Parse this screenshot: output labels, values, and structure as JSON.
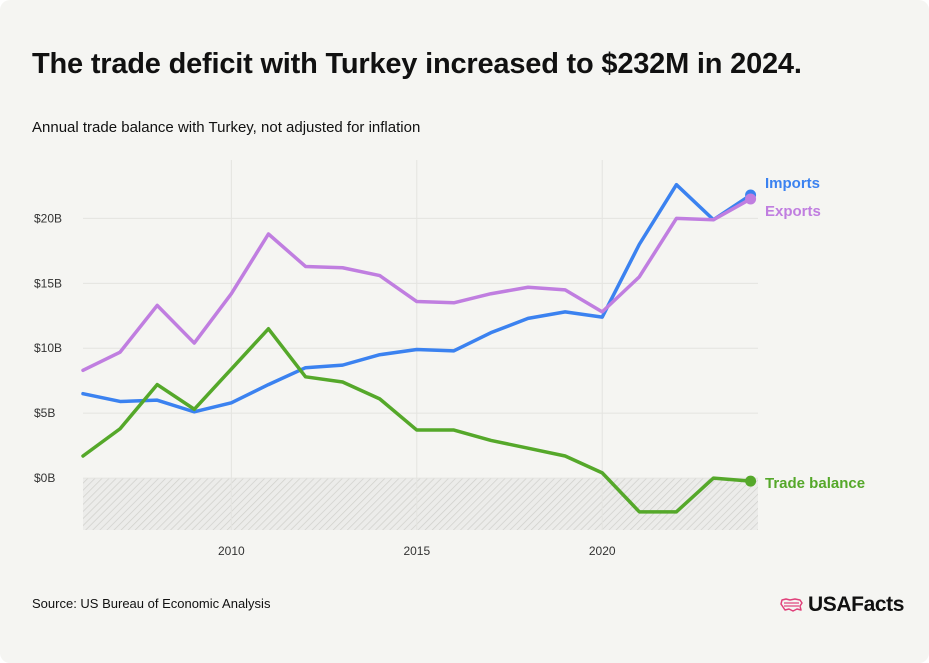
{
  "title": "The trade deficit with Turkey increased to $232M in 2024.",
  "subtitle": "Annual trade balance with Turkey, not adjusted for inflation",
  "source": "Source: US Bureau of Economic Analysis",
  "logo_text": "USAFacts",
  "colors": {
    "imports": "#3b82f0",
    "exports": "#c07ee0",
    "trade_balance": "#55a82a",
    "background": "#f5f5f2",
    "grid": "#e4e4e0"
  },
  "chart_data": {
    "type": "line",
    "x": [
      2006,
      2007,
      2008,
      2009,
      2010,
      2011,
      2012,
      2013,
      2014,
      2015,
      2016,
      2017,
      2018,
      2019,
      2020,
      2021,
      2022,
      2023,
      2024
    ],
    "series": [
      {
        "name": "Imports",
        "key": "imports",
        "values": [
          6.5,
          5.9,
          6.0,
          5.1,
          5.8,
          7.2,
          8.5,
          8.7,
          9.5,
          9.9,
          9.8,
          11.2,
          12.3,
          12.8,
          12.4,
          18.0,
          22.6,
          19.9,
          21.8
        ]
      },
      {
        "name": "Exports",
        "key": "exports",
        "values": [
          8.3,
          9.7,
          13.3,
          10.4,
          14.2,
          18.8,
          16.3,
          16.2,
          15.6,
          13.6,
          13.5,
          14.2,
          14.7,
          14.5,
          12.8,
          15.5,
          20.0,
          19.9,
          21.5
        ]
      },
      {
        "name": "Trade balance",
        "key": "trade_balance",
        "values": [
          1.7,
          3.8,
          7.2,
          5.3,
          8.4,
          11.5,
          7.8,
          7.4,
          6.1,
          3.7,
          3.7,
          2.9,
          2.3,
          1.7,
          0.4,
          -2.6,
          -2.6,
          0.0,
          -0.232
        ]
      }
    ],
    "y_ticks": [
      {
        "value": 0,
        "label": "$0B"
      },
      {
        "value": 5,
        "label": "$5B"
      },
      {
        "value": 10,
        "label": "$10B"
      },
      {
        "value": 15,
        "label": "$15B"
      },
      {
        "value": 20,
        "label": "$20B"
      }
    ],
    "x_ticks": [
      {
        "value": 2010,
        "label": "2010"
      },
      {
        "value": 2015,
        "label": "2015"
      },
      {
        "value": 2020,
        "label": "2020"
      }
    ],
    "xlim": [
      2006,
      2024.2
    ],
    "ylim": [
      -4,
      24.5
    ],
    "negative_region_shaded": true,
    "grid": true,
    "legend": "inline labels at line ends"
  }
}
